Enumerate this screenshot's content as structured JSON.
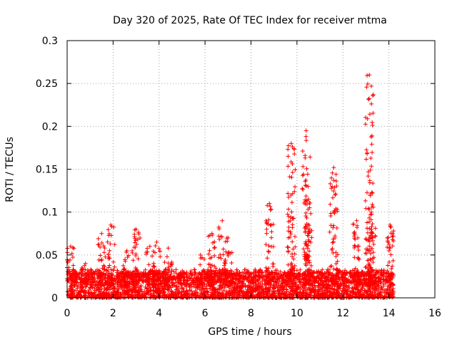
{
  "chart_data": {
    "type": "scatter",
    "title": "Day 320 of 2025, Rate Of TEC Index for receiver mtma",
    "xlabel": "GPS time / hours",
    "ylabel": "ROTI / TECUs",
    "xlim": [
      0,
      16
    ],
    "ylim": [
      0,
      0.3
    ],
    "x_ticks": [
      0,
      2,
      4,
      6,
      8,
      10,
      12,
      14,
      16
    ],
    "y_ticks": [
      0,
      0.05,
      0.1,
      0.15,
      0.2,
      0.25,
      0.3
    ],
    "x_tick_labels": [
      "0",
      "2",
      "4",
      "6",
      "8",
      "10",
      "12",
      "14",
      "16"
    ],
    "y_tick_labels": [
      "0",
      "0.05",
      "0.1",
      "0.15",
      "0.2",
      "0.25",
      "0.3"
    ],
    "grid": true,
    "marker": "+",
    "color": "#ff0000",
    "data_extent_hours": [
      0,
      14.2
    ],
    "baseline_band": {
      "description": "dense cloud of ROTI values between 0 and ~0.03 TECU/min across the full time span",
      "min": 0.0,
      "max": 0.03
    },
    "bursts": [
      {
        "t": 0.15,
        "peak": 0.06
      },
      {
        "t": 0.8,
        "peak": 0.04
      },
      {
        "t": 1.5,
        "peak": 0.075
      },
      {
        "t": 1.9,
        "peak": 0.085
      },
      {
        "t": 2.6,
        "peak": 0.055
      },
      {
        "t": 3.0,
        "peak": 0.08
      },
      {
        "t": 3.6,
        "peak": 0.06
      },
      {
        "t": 3.9,
        "peak": 0.065
      },
      {
        "t": 4.4,
        "peak": 0.058
      },
      {
        "t": 5.8,
        "peak": 0.05
      },
      {
        "t": 6.3,
        "peak": 0.075
      },
      {
        "t": 6.75,
        "peak": 0.09
      },
      {
        "t": 7.0,
        "peak": 0.07
      },
      {
        "t": 8.8,
        "peak": 0.11
      },
      {
        "t": 9.75,
        "peak": 0.18
      },
      {
        "t": 10.4,
        "peak": 0.195
      },
      {
        "t": 10.5,
        "peak": 0.115
      },
      {
        "t": 11.6,
        "peak": 0.152
      },
      {
        "t": 12.6,
        "peak": 0.09
      },
      {
        "t": 13.15,
        "peak": 0.26
      },
      {
        "t": 13.25,
        "peak": 0.083
      },
      {
        "t": 14.05,
        "peak": 0.085
      }
    ]
  }
}
